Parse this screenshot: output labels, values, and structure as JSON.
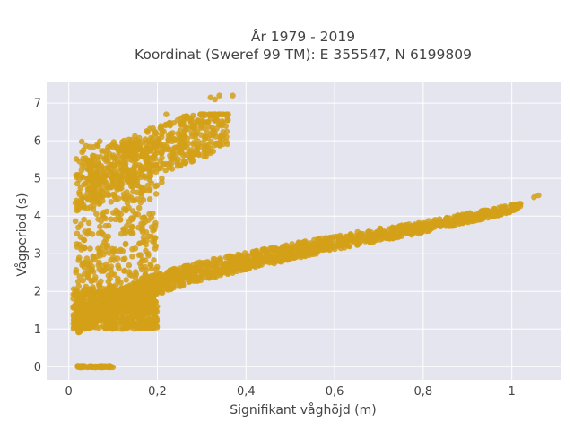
{
  "chart_data": {
    "type": "scatter",
    "title_lines": [
      "År 1979 - 2019",
      "Koordinat (Sweref 99 TM): E 355547, N 6199809"
    ],
    "xlabel": "Signifikant våghöjd (m)",
    "ylabel": "Vågperiod (s)",
    "xlim": [
      -0.05,
      1.11
    ],
    "ylim": [
      -0.35,
      7.55
    ],
    "x_ticks": [
      0,
      0.2,
      0.4,
      0.6,
      0.8,
      1
    ],
    "x_tick_labels": [
      "0",
      "0,2",
      "0,4",
      "0,6",
      "0,8",
      "1"
    ],
    "y_ticks": [
      0,
      1,
      2,
      3,
      4,
      5,
      6,
      7
    ],
    "y_tick_labels": [
      "0",
      "1",
      "2",
      "3",
      "4",
      "5",
      "6",
      "7"
    ],
    "grid": true,
    "background": "#e5e5ef",
    "marker_color": "#d4a017",
    "series": [
      {
        "clusters": [
          {
            "note": "zero-period row",
            "x_range": [
              0.02,
              0.1
            ],
            "y_range": [
              -0.02,
              0.02
            ],
            "count": 70
          },
          {
            "note": "low wind-sea band",
            "x_range": [
              0.01,
              0.2
            ],
            "y_range": [
              1.0,
              2.1
            ],
            "count": 600
          },
          {
            "note": "swell cloud",
            "x_range": [
              0.015,
              0.2
            ],
            "y_range": [
              1.8,
              6.0
            ],
            "count": 500
          }
        ],
        "trend_wind_sea": [
          [
            0.02,
            1.2
          ],
          [
            0.1,
            1.7
          ],
          [
            0.2,
            2.2
          ],
          [
            0.3,
            2.55
          ],
          [
            0.4,
            2.8
          ],
          [
            0.5,
            3.05
          ],
          [
            0.6,
            3.3
          ],
          [
            0.7,
            3.5
          ],
          [
            0.8,
            3.7
          ],
          [
            0.9,
            3.95
          ],
          [
            1.0,
            4.2
          ],
          [
            1.06,
            4.5
          ]
        ],
        "trend_swell_upper": [
          [
            0.02,
            4.8
          ],
          [
            0.1,
            5.4
          ],
          [
            0.2,
            5.9
          ],
          [
            0.3,
            6.3
          ],
          [
            0.36,
            6.6
          ]
        ],
        "outliers": [
          [
            0.32,
            7.15
          ],
          [
            0.34,
            7.2
          ],
          [
            0.37,
            7.2
          ],
          [
            0.33,
            7.1
          ],
          [
            1.05,
            4.5
          ],
          [
            1.06,
            4.55
          ],
          [
            0.22,
            6.7
          ],
          [
            0.02,
            1.5
          ],
          [
            0.21,
            4.9
          ],
          [
            0.21,
            5.0
          ]
        ]
      }
    ]
  }
}
